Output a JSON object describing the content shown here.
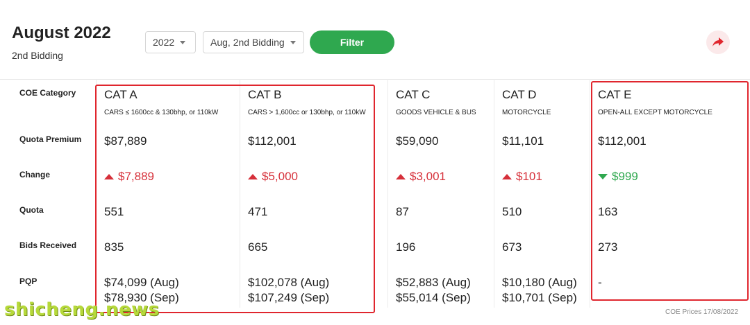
{
  "header": {
    "title": "August 2022",
    "subtitle": "2nd Bidding",
    "year_select": "2022",
    "bidding_select": "Aug, 2nd Bidding",
    "filter_label": "Filter"
  },
  "row_labels": {
    "category": "COE Category",
    "premium": "Quota Premium",
    "change": "Change",
    "quota": "Quota",
    "bids": "Bids Received",
    "pqp": "PQP"
  },
  "categories": [
    {
      "name": "CAT A",
      "desc": "CARS ≤ 1600cc & 130bhp, or 110kW",
      "premium": "$87,889",
      "change": "$7,889",
      "direction": "up",
      "quota": "551",
      "bids": "835",
      "pqp1": "$74,099 (Aug)",
      "pqp2": "$78,930 (Sep)"
    },
    {
      "name": "CAT B",
      "desc": "CARS > 1,600cc or 130bhp, or 110kW",
      "premium": "$112,001",
      "change": "$5,000",
      "direction": "up",
      "quota": "471",
      "bids": "665",
      "pqp1": "$102,078 (Aug)",
      "pqp2": "$107,249 (Sep)"
    },
    {
      "name": "CAT C",
      "desc": "GOODS VEHICLE & BUS",
      "premium": "$59,090",
      "change": "$3,001",
      "direction": "up",
      "quota": "87",
      "bids": "196",
      "pqp1": "$52,883 (Aug)",
      "pqp2": "$55,014 (Sep)"
    },
    {
      "name": "CAT D",
      "desc": "MOTORCYCLE",
      "premium": "$11,101",
      "change": "$101",
      "direction": "up",
      "quota": "510",
      "bids": "673",
      "pqp1": "$10,180 (Aug)",
      "pqp2": "$10,701 (Sep)"
    },
    {
      "name": "CAT E",
      "desc": "OPEN-ALL EXCEPT MOTORCYCLE",
      "premium": "$112,001",
      "change": "$999",
      "direction": "down",
      "quota": "163",
      "bids": "273",
      "pqp1": "-",
      "pqp2": ""
    }
  ],
  "footnote": "COE Prices 17/08/2022",
  "watermark": "shicheng.news",
  "colors": {
    "accent_green": "#2fa84f",
    "increase_red": "#d6303a",
    "highlight_red": "#e0262e"
  }
}
